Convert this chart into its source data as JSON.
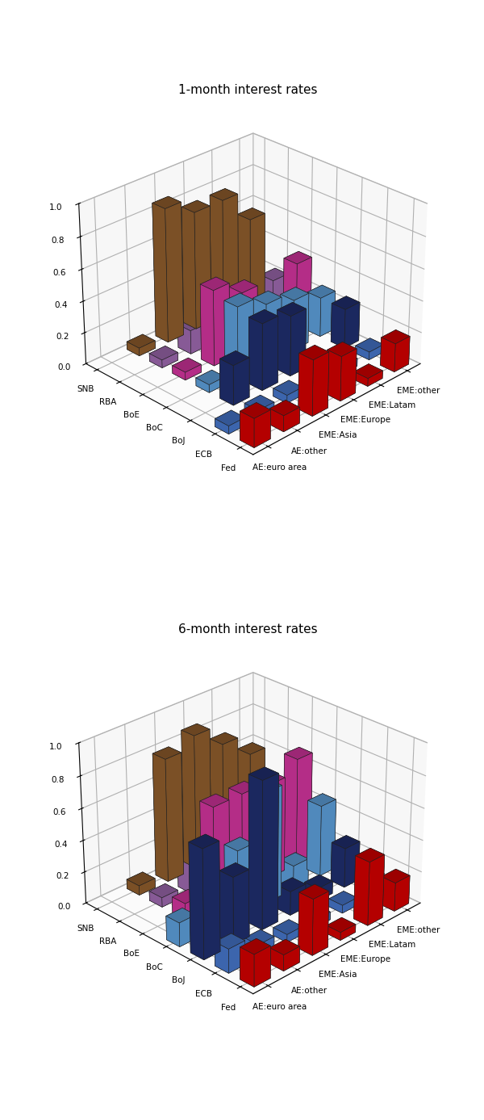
{
  "title1": "1-month interest rates",
  "title2": "6-month interest rates",
  "x_labels": [
    "AE:euro area",
    "AE:other",
    "EME:Asia",
    "EME:Europe",
    "EME:Latam",
    "EME:other"
  ],
  "y_labels": [
    "Fed",
    "ECB",
    "BoJ",
    "BoC",
    "BoE",
    "RBA",
    "SNB"
  ],
  "colors": {
    "Fed": "#CC0000",
    "ECB": "#4472C4",
    "BoJ": "#1F2D6B",
    "BoC": "#5B9BD5",
    "BoE": "#CC3399",
    "RBA": "#9966AA",
    "SNB": "#8B5A2B"
  },
  "data_1month": [
    [
      0.18,
      0.05,
      0.0,
      0.0,
      0.0,
      0.0,
      0.0
    ],
    [
      0.1,
      0.05,
      0.25,
      0.05,
      0.05,
      0.05,
      0.05
    ],
    [
      0.35,
      0.05,
      0.42,
      0.45,
      0.48,
      0.15,
      0.85
    ],
    [
      0.28,
      0.08,
      0.38,
      0.38,
      0.38,
      0.1,
      0.75
    ],
    [
      0.05,
      0.05,
      0.0,
      0.32,
      0.12,
      0.05,
      0.75
    ],
    [
      0.18,
      0.05,
      0.25,
      0.25,
      0.4,
      0.22,
      0.55
    ]
  ],
  "data_6month": [
    [
      0.2,
      0.15,
      0.68,
      0.15,
      0.0,
      0.0,
      0.0
    ],
    [
      0.1,
      0.08,
      0.42,
      0.32,
      0.1,
      0.06,
      0.06
    ],
    [
      0.35,
      0.05,
      0.92,
      0.42,
      0.62,
      0.28,
      0.78
    ],
    [
      0.05,
      0.05,
      0.15,
      0.7,
      0.62,
      0.22,
      0.85
    ],
    [
      0.4,
      0.05,
      0.08,
      0.15,
      0.6,
      0.12,
      0.72
    ],
    [
      0.18,
      0.12,
      0.25,
      0.45,
      0.68,
      0.3,
      0.58
    ]
  ],
  "elev": 28,
  "azim": 225,
  "bar_width": 0.55,
  "bar_depth": 0.55,
  "zlim": [
    0,
    1.0
  ],
  "zticks": [
    0.0,
    0.2,
    0.4,
    0.6,
    0.8,
    1.0
  ],
  "fontsize_title": 11,
  "fontsize_ticks": 7.5,
  "background_color": "#ffffff"
}
